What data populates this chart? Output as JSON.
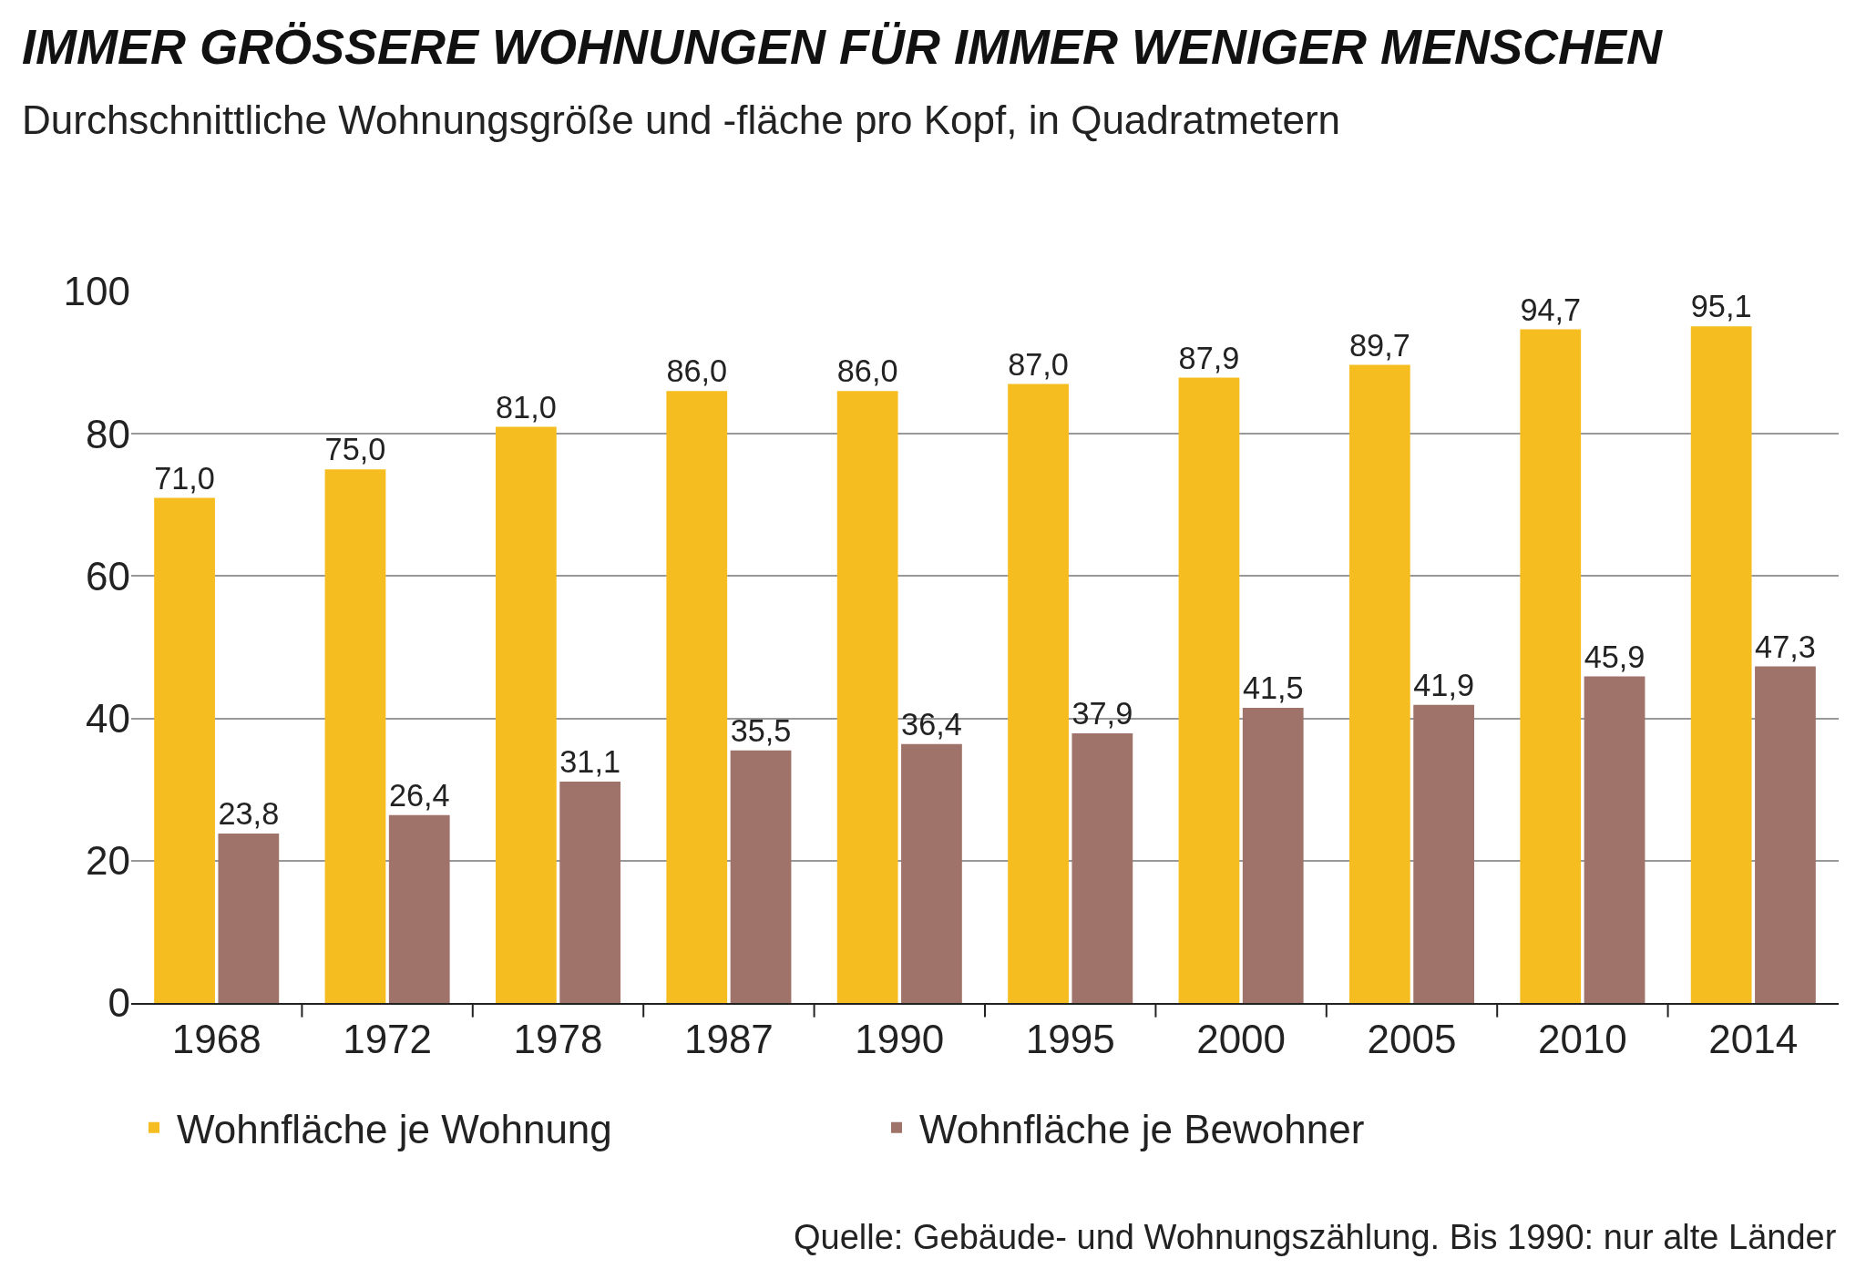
{
  "chart_data": {
    "type": "bar",
    "title": "IMMER GRÖSSERE WOHNUNGEN FÜR IMMER WENIGER MENSCHEN",
    "subtitle": "Durchschnittliche Wohnungsgröße und -fläche pro Kopf, in Quadratmetern",
    "categories": [
      "1968",
      "1972",
      "1978",
      "1987",
      "1990",
      "1995",
      "2000",
      "2005",
      "2010",
      "2014"
    ],
    "series": [
      {
        "name": "Wohnfläche je Wohnung",
        "color": "#f5bd1f",
        "values": [
          71.0,
          75.0,
          81.0,
          86.0,
          86.0,
          87.0,
          87.9,
          89.7,
          94.7,
          95.1
        ],
        "value_labels": [
          "71,0",
          "75,0",
          "81,0",
          "86,0",
          "86,0",
          "87,0",
          "87,9",
          "89,7",
          "94,7",
          "95,1"
        ]
      },
      {
        "name": "Wohnfläche je Bewohner",
        "color": "#a0736a",
        "values": [
          23.8,
          26.4,
          31.1,
          35.5,
          36.4,
          37.9,
          41.5,
          41.9,
          45.9,
          47.3
        ],
        "value_labels": [
          "23,8",
          "26,4",
          "31,1",
          "35,5",
          "36,4",
          "37,9",
          "41,5",
          "41,9",
          "45,9",
          "47,3"
        ]
      }
    ],
    "ylim": [
      0,
      100
    ],
    "yticks": [
      0,
      20,
      40,
      60,
      80,
      100
    ],
    "grid": "y",
    "legend": "bottom",
    "annotations": [
      "Quelle: Gebäude- und Wohnungszählung. Bis 1990: nur alte Länder"
    ]
  }
}
